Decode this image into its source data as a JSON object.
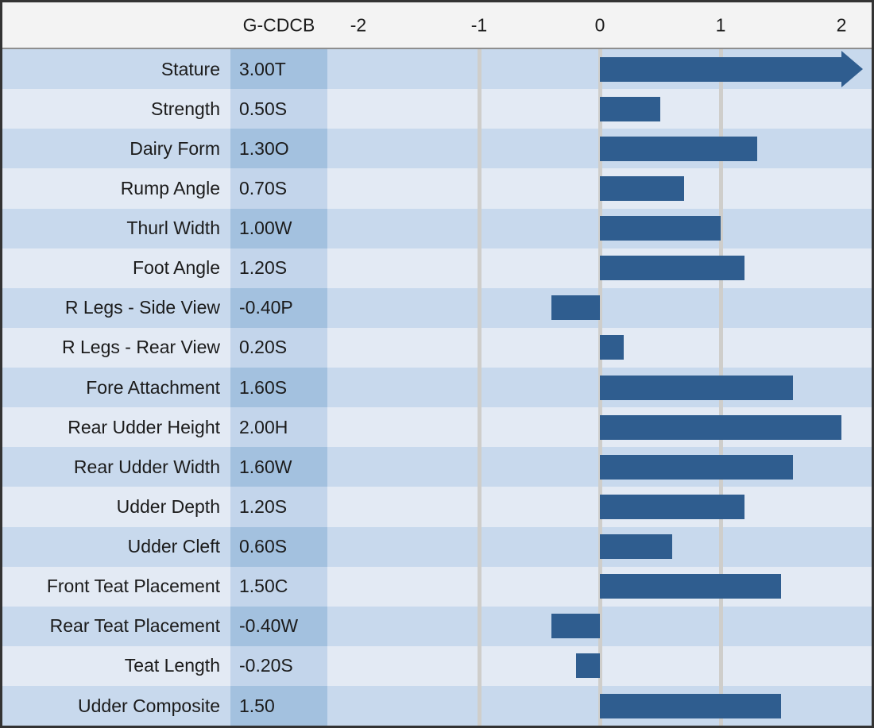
{
  "colors": {
    "bar": "#2F5D8F",
    "row_odd": "#C8D9ED",
    "row_even": "#E3EAF4",
    "value_odd": "#A3C1DF",
    "value_even": "#C3D5EB",
    "gridline": "#CFCECB",
    "header_bg": "#F3F3F3",
    "border": "#333333",
    "text": "#1B1B1B"
  },
  "chart_data": {
    "type": "bar",
    "orientation": "horizontal",
    "title": "",
    "value_column_header": "G-CDCB",
    "categories": [
      "Stature",
      "Strength",
      "Dairy Form",
      "Rump Angle",
      "Thurl Width",
      "Foot Angle",
      "R Legs - Side View",
      "R Legs - Rear View",
      "Fore Attachment",
      "Rear Udder Height",
      "Rear Udder Width",
      "Udder Depth",
      "Udder Cleft",
      "Front Teat Placement",
      "Rear Teat Placement",
      "Teat Length",
      "Udder Composite"
    ],
    "values": [
      3.0,
      0.5,
      1.3,
      0.7,
      1.0,
      1.2,
      -0.4,
      0.2,
      1.6,
      2.0,
      1.6,
      1.2,
      0.6,
      1.5,
      -0.4,
      -0.2,
      1.5
    ],
    "value_labels": [
      "3.00T",
      "0.50S",
      "1.30O",
      "0.70S",
      "1.00W",
      "1.20S",
      "-0.40P",
      "0.20S",
      "1.60S",
      "2.00H",
      "1.60W",
      "1.20S",
      "0.60S",
      "1.50C",
      "-0.40W",
      "-0.20S",
      "1.50"
    ],
    "axis": {
      "ticks": [
        -2,
        -1,
        0,
        1,
        2
      ],
      "tick_labels": [
        "-2",
        "-1",
        "0",
        "1",
        "2"
      ],
      "gridline_ticks": [
        -1,
        0,
        1
      ],
      "xlim": [
        -2.26,
        2.27
      ],
      "clip_max": 2.0,
      "overflow_indicator": "arrow"
    },
    "legend": null,
    "grid": "vertical-major-only"
  }
}
